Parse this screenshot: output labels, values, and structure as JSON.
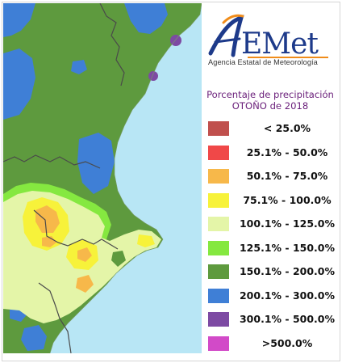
{
  "logo": {
    "brand": "AEMet",
    "subtitle": "Agencia Estatal de Meteorología"
  },
  "title": {
    "line1": "Porcentaje de precipitación",
    "line2": "OTOÑO de 2018"
  },
  "legend": [
    {
      "label": "< 25.0%",
      "color": "#c0504d"
    },
    {
      "label": "25.1% - 50.0%",
      "color": "#f04848"
    },
    {
      "label": "50.1% - 75.0%",
      "color": "#f7b84a"
    },
    {
      "label": "75.1% - 100.0%",
      "color": "#f7f23a"
    },
    {
      "label": "100.1% - 125.0%",
      "color": "#e4f5a8"
    },
    {
      "label": "125.1% - 150.0%",
      "color": "#85e840"
    },
    {
      "label": "150.1% - 200.0%",
      "color": "#5e9a3e"
    },
    {
      "label": "200.1% - 300.0%",
      "color": "#3f7fd6"
    },
    {
      "label": "300.1% - 500.0%",
      "color": "#7d4aa3"
    },
    {
      "label": ">500.0%",
      "color": "#d24ac8"
    }
  ],
  "colors": {
    "sea": "#b8e6f5",
    "title_text": "#6a1f7a",
    "logo_blue": "#1d3a8a",
    "logo_orange": "#f08c1a"
  }
}
